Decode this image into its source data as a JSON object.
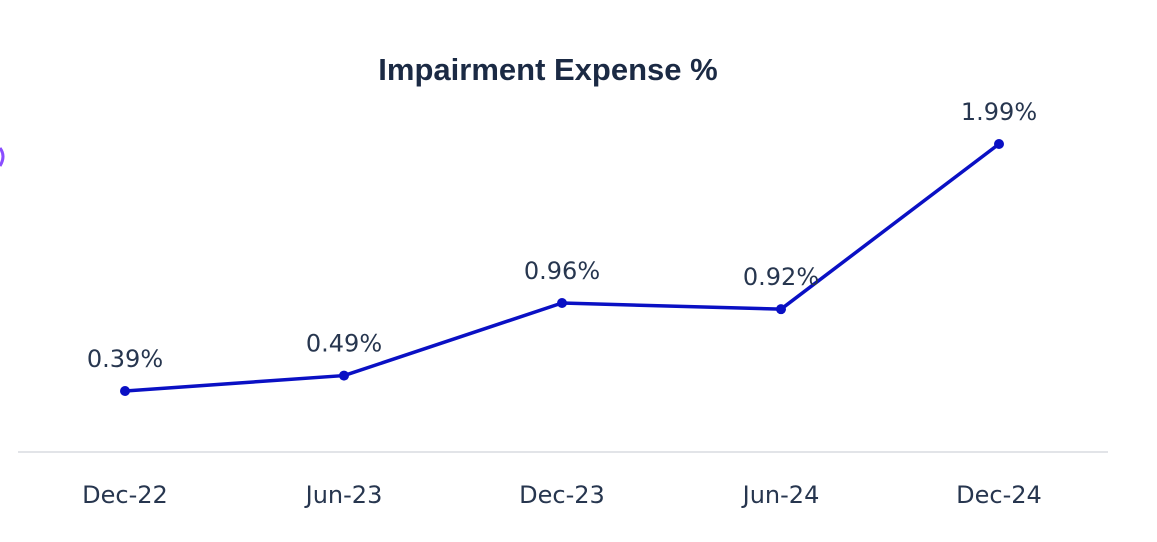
{
  "chart_data": {
    "type": "line",
    "title": "Impairment Expense %",
    "categories": [
      "Dec-22",
      "Jun-23",
      "Dec-23",
      "Jun-24",
      "Dec-24"
    ],
    "series": [
      {
        "values": [
          0.39,
          0.49,
          0.96,
          0.92,
          1.99
        ],
        "labels": [
          "0.39%",
          "0.49%",
          "0.96%",
          "0.92%",
          "1.99%"
        ],
        "color": "#0a10c4"
      }
    ],
    "xlabel": "",
    "ylabel": "",
    "grid": false,
    "colors": {
      "line": "#0a10c4",
      "axis": "#d9dce1",
      "text": "#27364f",
      "title": "#1b2a44",
      "edge_mark": "#8a4dff"
    }
  }
}
